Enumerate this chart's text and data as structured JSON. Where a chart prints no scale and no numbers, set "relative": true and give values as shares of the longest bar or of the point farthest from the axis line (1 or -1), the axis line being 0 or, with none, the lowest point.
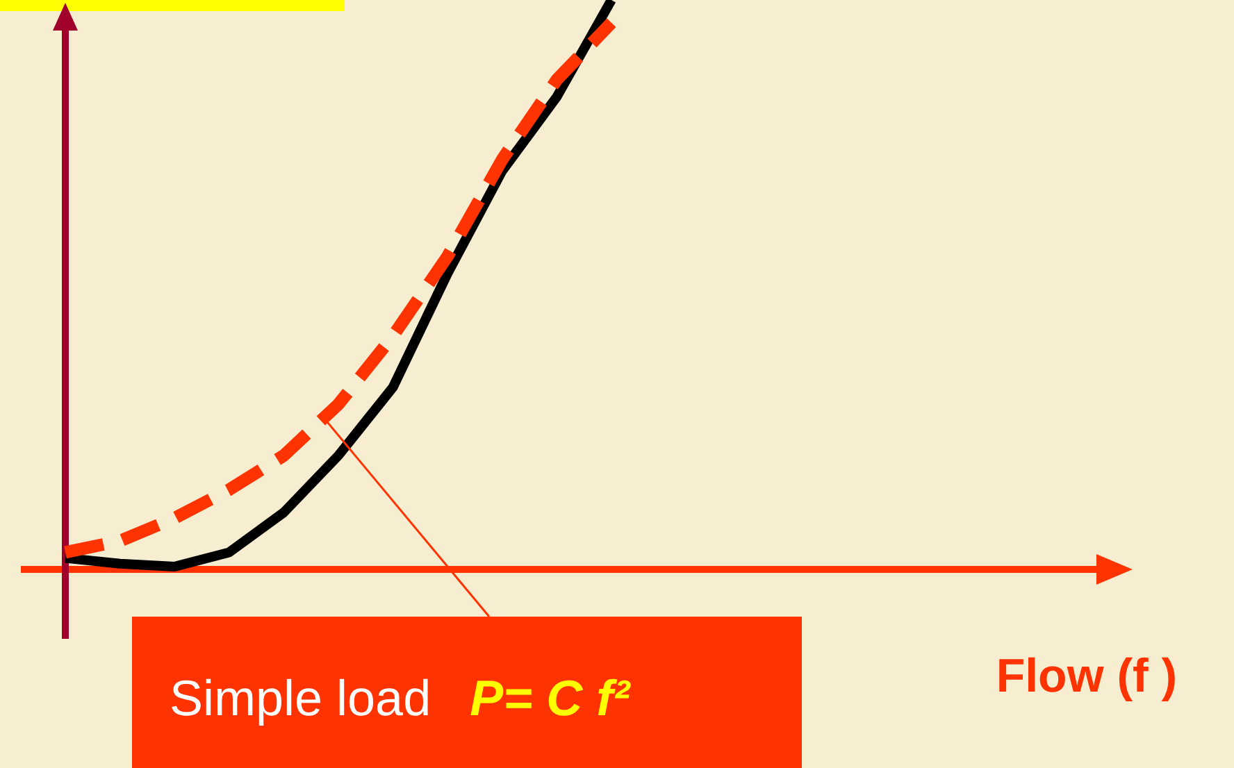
{
  "chart_data": {
    "type": "line",
    "relative": true,
    "categories": [
      null,
      null,
      null,
      null,
      null,
      null,
      null,
      null,
      null,
      null,
      null
    ],
    "annotations": [
      "Simple load",
      "P= C f²",
      "Flow (f )"
    ],
    "series": [
      {
        "color": "#000000",
        "line_style": "solid",
        "values": [
          0.02,
          0.01,
          0.005,
          0.03,
          0.1,
          0.2,
          0.32,
          0.52,
          0.7,
          0.83,
          1
        ]
      },
      {
        "color": "#ff3300",
        "line_style": "dashed",
        "values": [
          0.03,
          0.05,
          0.09,
          0.14,
          0.2,
          0.29,
          0.41,
          0.55,
          0.72,
          0.86,
          0.96
        ]
      }
    ]
  }
}
